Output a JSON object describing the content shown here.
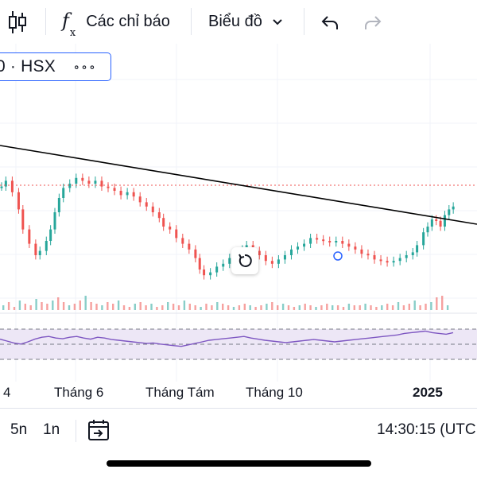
{
  "toolbar": {
    "indicators_label": "Các chỉ báo",
    "chart_type_label": "Biểu đồ",
    "icons": [
      "candlestick-icon",
      "fx-icon",
      "chevron-down-icon",
      "undo-icon",
      "redo-icon"
    ]
  },
  "symbol": {
    "text": "0 · HSX",
    "more": "∘∘∘"
  },
  "chart_data": {
    "type": "candlestick",
    "title": "",
    "xlabel": "",
    "ylabel": "",
    "x_ticks": [
      "4",
      "Tháng 6",
      "Tháng Tám",
      "Tháng 10",
      "2025"
    ],
    "highlight_tick": "2025",
    "note": "values in relative price units (0-100); no price axis visible",
    "ylim": [
      0,
      100
    ],
    "close_path": [
      [
        0,
        78
      ],
      [
        2,
        82
      ],
      [
        5,
        74
      ],
      [
        8,
        62
      ],
      [
        10,
        48
      ],
      [
        13,
        38
      ],
      [
        16,
        30
      ],
      [
        18,
        33
      ],
      [
        21,
        40
      ],
      [
        23,
        48
      ],
      [
        25,
        60
      ],
      [
        27,
        70
      ],
      [
        29,
        77
      ],
      [
        32,
        80
      ],
      [
        35,
        84
      ],
      [
        38,
        82
      ],
      [
        41,
        80
      ],
      [
        44,
        82
      ],
      [
        47,
        78
      ],
      [
        50,
        77
      ],
      [
        53,
        75
      ],
      [
        56,
        72
      ],
      [
        59,
        74
      ],
      [
        62,
        71
      ],
      [
        65,
        67
      ],
      [
        68,
        64
      ],
      [
        71,
        60
      ],
      [
        74,
        56
      ],
      [
        76,
        50
      ],
      [
        79,
        48
      ],
      [
        82,
        42
      ],
      [
        85,
        38
      ],
      [
        88,
        34
      ],
      [
        91,
        28
      ],
      [
        93,
        20
      ],
      [
        95,
        16
      ],
      [
        98,
        18
      ],
      [
        101,
        22
      ],
      [
        104,
        24
      ],
      [
        107,
        28
      ],
      [
        110,
        30
      ],
      [
        113,
        34
      ],
      [
        115,
        37
      ],
      [
        118,
        33
      ],
      [
        121,
        30
      ],
      [
        124,
        26
      ],
      [
        127,
        24
      ],
      [
        130,
        27
      ],
      [
        133,
        30
      ],
      [
        136,
        34
      ],
      [
        139,
        36
      ],
      [
        142,
        38
      ],
      [
        145,
        42
      ],
      [
        148,
        41
      ],
      [
        151,
        40
      ],
      [
        154,
        39
      ],
      [
        157,
        40
      ],
      [
        160,
        38
      ],
      [
        163,
        36
      ],
      [
        166,
        34
      ],
      [
        169,
        31
      ],
      [
        172,
        30
      ],
      [
        175,
        27
      ],
      [
        178,
        26
      ],
      [
        181,
        25
      ],
      [
        184,
        26
      ],
      [
        187,
        28
      ],
      [
        190,
        30
      ],
      [
        193,
        32
      ],
      [
        195,
        37
      ],
      [
        198,
        46
      ],
      [
        200,
        50
      ],
      [
        202,
        55
      ],
      [
        204,
        54
      ],
      [
        206,
        50
      ],
      [
        208,
        58
      ],
      [
        210,
        62
      ],
      [
        212,
        64
      ]
    ],
    "volume_levels": [
      3,
      5,
      2,
      6,
      4,
      3,
      7,
      5,
      4,
      6,
      8,
      5,
      3,
      4,
      6,
      9,
      5,
      4,
      3,
      5,
      4,
      6,
      3,
      2,
      4,
      5,
      3,
      4,
      2,
      3,
      5,
      4,
      3,
      6,
      4,
      3,
      2,
      4,
      3,
      5,
      4,
      3,
      2,
      3,
      4,
      3,
      2,
      3,
      4,
      5,
      3,
      4,
      3,
      2,
      3,
      4,
      3,
      2,
      3,
      4,
      3,
      3,
      2,
      4,
      3,
      3,
      4,
      3,
      2,
      3,
      4,
      3,
      5,
      3,
      4,
      6,
      3,
      4,
      5,
      8,
      9,
      3
    ],
    "rsi_levels": [
      55,
      50,
      45,
      42,
      48,
      55,
      60,
      62,
      58,
      56,
      60,
      62,
      58,
      55,
      60,
      58,
      54,
      52,
      50,
      48,
      46,
      44,
      45,
      42,
      40,
      38,
      36,
      40,
      44,
      48,
      52,
      54,
      56,
      58,
      60,
      62,
      58,
      55,
      52,
      50,
      48,
      46,
      48,
      50,
      52,
      54,
      52,
      50,
      48,
      50,
      52,
      54,
      56,
      58,
      60,
      62,
      64,
      66,
      70,
      72,
      74,
      76,
      72,
      70,
      68,
      72
    ]
  },
  "time_axis": {
    "ticks": [
      "4",
      "Tháng 6",
      "Tháng Tám",
      "Tháng 10",
      "2025"
    ]
  },
  "bottombar": {
    "range_5n": "5n",
    "range_1n": "1n",
    "clock": "14:30:15 (UTC"
  },
  "colors": {
    "up": "#26a69a",
    "down": "#ef5350",
    "trendline": "#000000",
    "price_line": "#ef5350",
    "rsi_line": "#7e57c2",
    "rsi_band": "#ede7f6",
    "accent": "#2962ff"
  }
}
